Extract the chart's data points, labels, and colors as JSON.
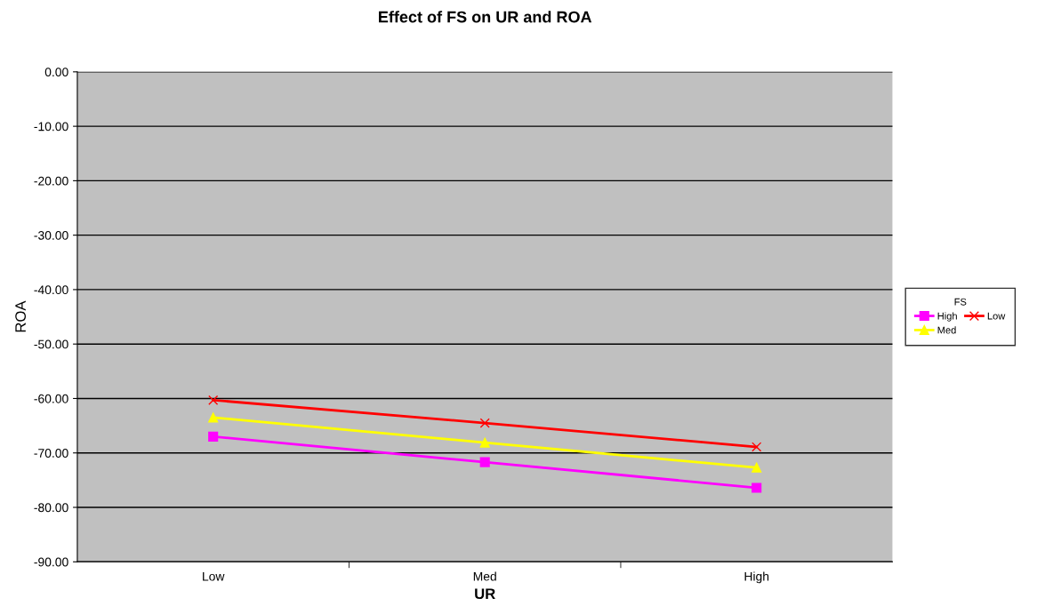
{
  "chart_data": {
    "type": "line",
    "title": "Effect of FS on UR and ROA",
    "xlabel": "UR",
    "ylabel": "ROA",
    "categories": [
      "Low",
      "Med",
      "High"
    ],
    "series": [
      {
        "name": "High",
        "color": "#ff00ff",
        "marker": "square",
        "values": [
          -67.0,
          -71.7,
          -76.4
        ]
      },
      {
        "name": "Med",
        "color": "#ffff00",
        "marker": "triangle",
        "values": [
          -63.5,
          -68.1,
          -72.7
        ]
      },
      {
        "name": "Low",
        "color": "#ff0000",
        "marker": "cross",
        "values": [
          -60.3,
          -64.5,
          -68.9
        ]
      }
    ],
    "legend_title": "FS",
    "legend": "right",
    "ylim": [
      -90,
      0
    ],
    "yticks": [
      {
        "value": 0,
        "label": "0.00"
      },
      {
        "value": -10,
        "label": "-10.00"
      },
      {
        "value": -20,
        "label": "-20.00"
      },
      {
        "value": -30,
        "label": "-30.00"
      },
      {
        "value": -40,
        "label": "-40.00"
      },
      {
        "value": -50,
        "label": "-50.00"
      },
      {
        "value": -60,
        "label": "-60.00"
      },
      {
        "value": -70,
        "label": "-70.00"
      },
      {
        "value": -80,
        "label": "-80.00"
      },
      {
        "value": -90,
        "label": "-90.00"
      }
    ],
    "grid": "y",
    "line_style": "solid"
  }
}
